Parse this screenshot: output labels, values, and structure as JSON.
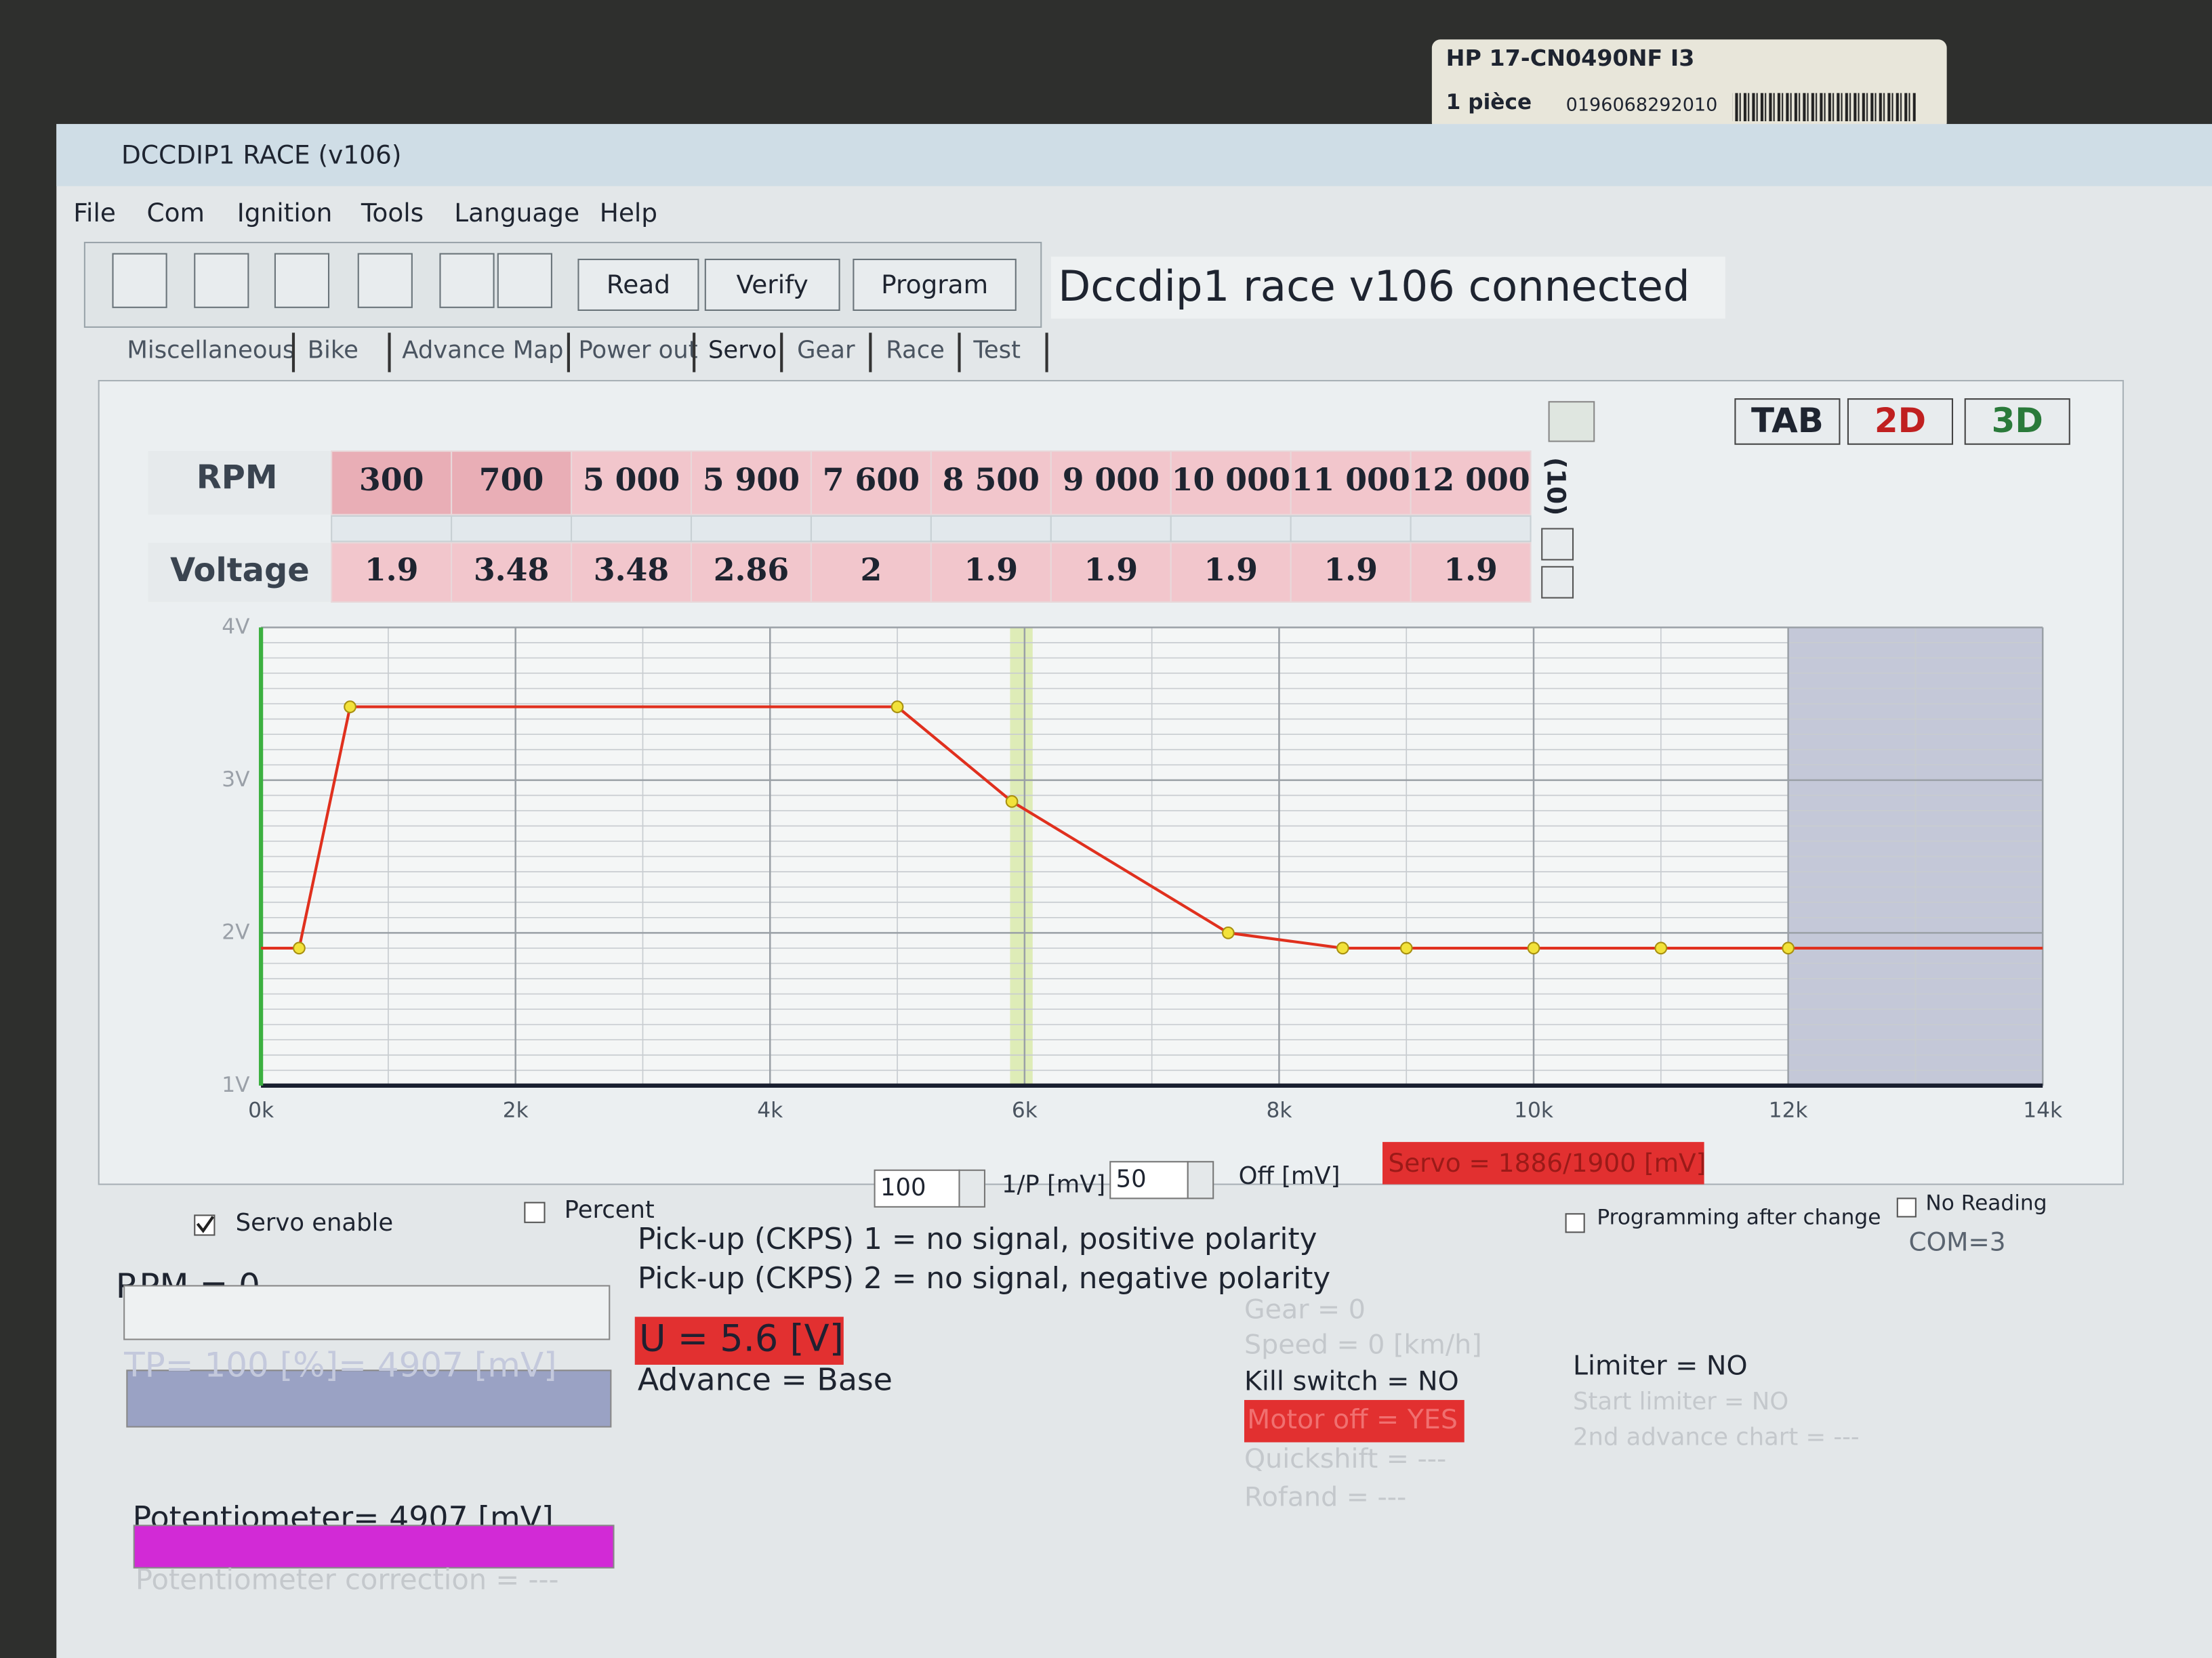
{
  "sticker": {
    "model": "HP 17-CN0490NF I3",
    "quantity": "1 pièce",
    "code": "0196068292010"
  },
  "window": {
    "title": "DCCDIP1 RACE (v106)"
  },
  "menu": [
    "File",
    "Com",
    "Ignition",
    "Tools",
    "Language",
    "Help"
  ],
  "toolbar": {
    "buttons": [
      "Read",
      "Verify",
      "Program"
    ],
    "status": "Dccdip1 race v106 connected"
  },
  "tabs": [
    "Miscellaneous",
    "Bike",
    "Advance Map",
    "Power out",
    "Servo",
    "Gear",
    "Race",
    "Test"
  ],
  "view_buttons": [
    "TAB",
    "2D",
    "3D"
  ],
  "table": {
    "row_headers": [
      "RPM",
      "Voltage"
    ],
    "rpm": [
      "300",
      "700",
      "5 000",
      "5 900",
      "7 600",
      "8 500",
      "9 000",
      "10 000",
      "11 000",
      "12 000"
    ],
    "side_label": "(10)"
  },
  "chart_data": {
    "type": "line",
    "x": [
      300,
      700,
      5000,
      5900,
      7600,
      8500,
      9000,
      10000,
      11000,
      12000
    ],
    "values": [
      1.9,
      3.48,
      3.48,
      2.86,
      2,
      1.9,
      1.9,
      1.9,
      1.9,
      1.9
    ],
    "color": "#e0301e",
    "marker_color": "#f2e23a",
    "xlim": [
      0,
      14000
    ],
    "xticks": [
      {
        "value": 0,
        "label": "0k"
      },
      {
        "value": 2000,
        "label": "2k"
      },
      {
        "value": 4000,
        "label": "4k"
      },
      {
        "value": 6000,
        "label": "6k"
      },
      {
        "value": 8000,
        "label": "8k"
      },
      {
        "value": 10000,
        "label": "10k"
      },
      {
        "value": 12000,
        "label": "12k"
      },
      {
        "value": 14000,
        "label": "14k"
      }
    ],
    "ylim": [
      1,
      4
    ],
    "yticks": [
      {
        "value": 1,
        "label": "1V"
      },
      {
        "value": 2,
        "label": "2V"
      },
      {
        "value": 3,
        "label": "3V"
      },
      {
        "value": 4,
        "label": "4V"
      }
    ],
    "grid": true
  },
  "controls": {
    "servo_enable": "Servo enable",
    "percent": "Percent",
    "gain": "100",
    "gain_unit": "1/P [mV]",
    "offset": "50",
    "offset_unit": "Off [mV]",
    "servo": "Servo = 1886/1900 [mV]",
    "programming_after_change": "Programming after change",
    "no_reading": "No Reading",
    "com": "COM=3"
  },
  "status": {
    "rpm": "RPM = 0",
    "tp": "TP= 100 [%]= 4907 [mV]",
    "pickup1": "Pick-up (CKPS) 1 = no signal, positive polarity",
    "pickup2": "Pick-up (CKPS) 2 = no signal, negative polarity",
    "voltage": "U = 5.6 [V]",
    "advance": "Advance = Base",
    "gear": "Gear = 0",
    "speed": "Speed = 0 [km/h]",
    "kill_switch": "Kill switch = NO",
    "motor_off": "Motor off = YES",
    "quickshift": "Quickshift = ---",
    "rofand": "Rofand = ---",
    "limiter": "Limiter = NO",
    "start_limiter": "Start limiter = NO",
    "second_advance": "2nd advance chart = ---",
    "potentiometer": "Potentiometer= 4907 [mV]",
    "potentiometer_correction": "Potentiometer correction = ---"
  }
}
